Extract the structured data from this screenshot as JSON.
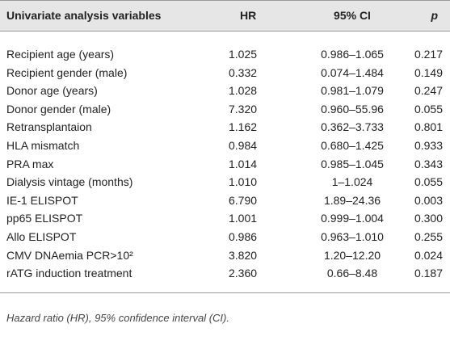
{
  "table": {
    "headers": [
      "Univariate analysis variables",
      "HR",
      "95% CI",
      "p"
    ],
    "rows": [
      [
        "Recipient age (years)",
        "1.025",
        "0.986–1.065",
        "0.217"
      ],
      [
        "Recipient gender (male)",
        "0.332",
        "0.074–1.484",
        "0.149"
      ],
      [
        "Donor age (years)",
        "1.028",
        "0.981–1.079",
        "0.247"
      ],
      [
        "Donor gender (male)",
        "7.320",
        "0.960–55.96",
        "0.055"
      ],
      [
        "Retransplantaion",
        "1.162",
        "0.362–3.733",
        "0.801"
      ],
      [
        "HLA mismatch",
        "0.984",
        "0.680–1.425",
        "0.933"
      ],
      [
        "PRA max",
        "1.014",
        "0.985–1.045",
        "0.343"
      ],
      [
        "Dialysis vintage (months)",
        "1.010",
        "1–1.024",
        "0.055"
      ],
      [
        "IE-1 ELISPOT",
        "6.790",
        "1.89–24.36",
        "0.003"
      ],
      [
        "pp65 ELISPOT",
        "1.001",
        "0.999–1.004",
        "0.300"
      ],
      [
        "Allo ELISPOT",
        "0.986",
        "0.963–1.010",
        "0.255"
      ],
      [
        "CMV DNAemia PCR>10²",
        "3.820",
        "1.20–12.20",
        "0.024"
      ],
      [
        "rATG induction treatment",
        "2.360",
        "0.66–8.48",
        "0.187"
      ]
    ],
    "footnote": "Hazard ratio (HR), 95% confidence interval (CI)."
  }
}
